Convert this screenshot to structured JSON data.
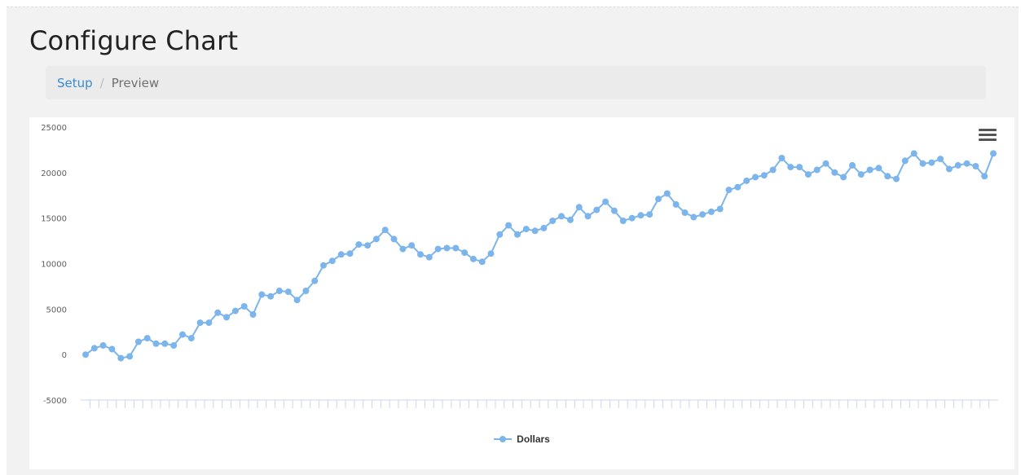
{
  "page": {
    "title": "Configure Chart"
  },
  "breadcrumb": {
    "items": [
      {
        "label": "Setup",
        "link": true
      },
      {
        "label": "Preview",
        "link": false
      }
    ],
    "separator": "/"
  },
  "chart_menu_icon": "hamburger-menu-icon",
  "colors": {
    "series": "#7cb5ec",
    "link": "#3a8ad4"
  },
  "chart_data": {
    "type": "line",
    "title": "",
    "xlabel": "",
    "ylabel": "",
    "ylim": [
      -5000,
      25000
    ],
    "y_ticks": [
      "25000",
      "20000",
      "15000",
      "10000",
      "5000",
      "0",
      "-5000"
    ],
    "legend_placement": "bottom-center",
    "grid": false,
    "series": [
      {
        "name": "Dollars",
        "values": [
          0,
          700,
          1000,
          600,
          -400,
          -200,
          1400,
          1800,
          1200,
          1200,
          1000,
          2200,
          1800,
          3500,
          3500,
          4600,
          4100,
          4800,
          5300,
          4400,
          6600,
          6400,
          7000,
          6900,
          6000,
          7000,
          8100,
          9800,
          10300,
          11000,
          11100,
          12100,
          12000,
          12700,
          13700,
          12700,
          11600,
          12000,
          11000,
          10700,
          11600,
          11700,
          11700,
          11200,
          10500,
          10200,
          11100,
          13200,
          14200,
          13200,
          13800,
          13600,
          13900,
          14700,
          15200,
          14800,
          16200,
          15200,
          15900,
          16800,
          15800,
          14700,
          15000,
          15300,
          15400,
          17100,
          17700,
          16500,
          15600,
          15100,
          15400,
          15700,
          16000,
          18100,
          18400,
          19100,
          19500,
          19700,
          20300,
          21600,
          20600,
          20600,
          19800,
          20300,
          21000,
          20000,
          19500,
          20800,
          19800,
          20300,
          20500,
          19600,
          19300,
          21300,
          22100,
          21000,
          21100,
          21500,
          20400,
          20800,
          21000,
          20700,
          19600,
          22100
        ]
      }
    ]
  }
}
